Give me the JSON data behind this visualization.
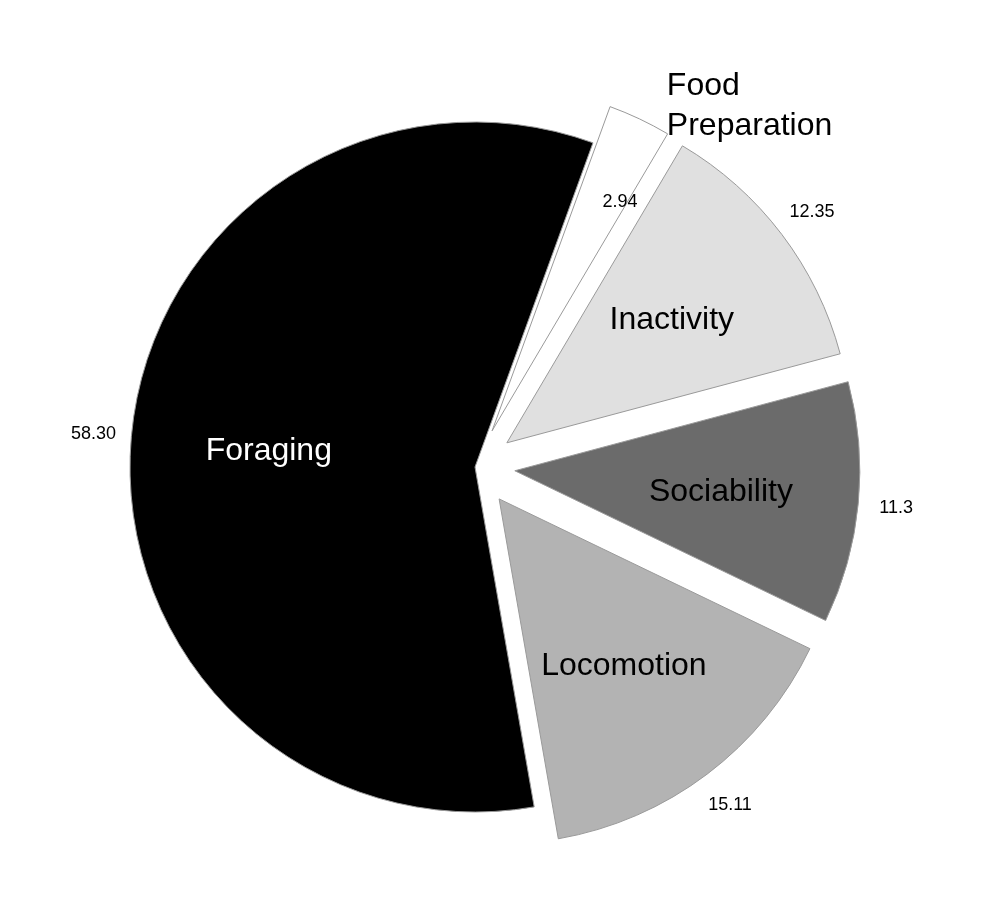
{
  "chart_data": {
    "type": "pie",
    "categories": [
      "Food Preparation",
      "Inactivity",
      "Sociability",
      "Locomotion",
      "Foraging"
    ],
    "values": [
      2.94,
      12.35,
      11.3,
      15.11,
      58.3
    ],
    "value_labels": [
      "2.94",
      "12.35",
      "11.3",
      "15.11",
      "58.30"
    ],
    "colors": [
      "#ffffff",
      "#e0e0e0",
      "#6b6b6b",
      "#b3b3b3",
      "#000000"
    ]
  }
}
